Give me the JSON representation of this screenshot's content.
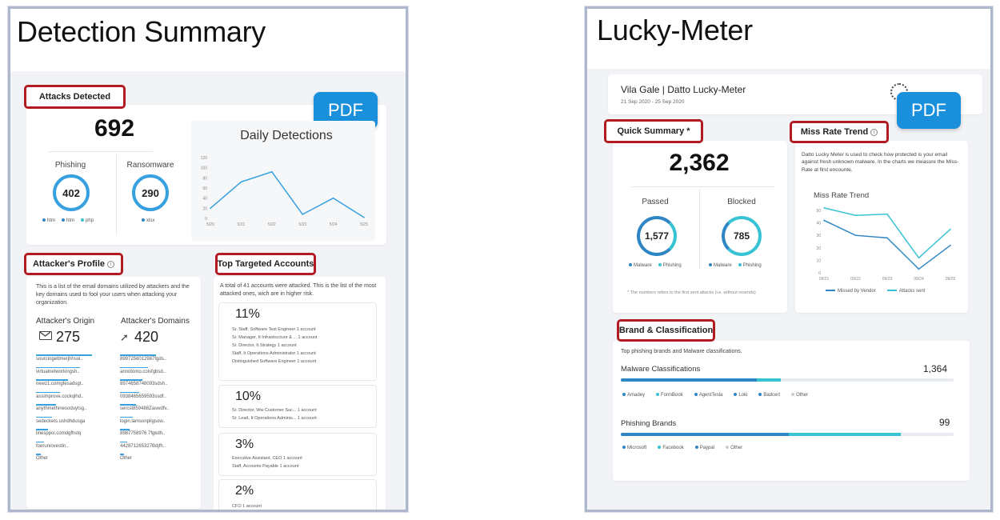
{
  "left": {
    "title": "Detection Summary",
    "attacks_label": "Attacks Detected",
    "pdf_label": "PDF",
    "total": "692",
    "phishing_label": "Phishing",
    "phishing_value": "402",
    "ransomware_label": "Ransomware",
    "ransomware_value": "290",
    "phishing_legend": [
      "htm",
      "htm",
      "php"
    ],
    "ransomware_legend": [
      "xlsx"
    ],
    "chart_title": "Daily Detections",
    "profile_label": "Attacker's Profile",
    "profile_desc": "This is a list of the email domains utilized by attackers and the key domains used to fool your users when attacking your organization.",
    "origin_label": "Attacker's Origin",
    "origin_value": "275",
    "domains_label": "Attacker's Domains",
    "domains_value": "420",
    "origin_list": [
      "sourcingettmerjhhsoi..",
      "virtualnetworkingsh..",
      "newz1.comgfesadsgt..",
      "assimprove.cockqlhd..",
      "anythmethinesoduytsg..",
      "sedeckets.ushdhdusga",
      "linesppoi.comdgfhstq",
      "foeruninvestin..",
      "Other"
    ],
    "domain_list": [
      "8997256012987fgds..",
      "annotomo.coisfgbsd..",
      "8974658748093sdsh..",
      "0938465659593ssdf..",
      "sercst859488Zaswdfv..",
      "login.lamsonpligsow..",
      "8987758976 7fgkdh..",
      "442871265327Bdjfh..",
      "Other"
    ],
    "targeted_label": "Top Targeted Accounts",
    "targeted_desc": "A total of 41 accounts were attacked. This is the list of the most attacked ones, wich are in higher risk.",
    "accounts": [
      {
        "pct": "11%",
        "lines": [
          "Sr. Staff, Software Test Engineer  1 account",
          "Sr. Manager, It Infrastructure & ...  1 account",
          "Sr. Director, It Strategy    1 account",
          "Staff, It Operations Administrator  1 account",
          "Distinguished Software Engineer  1 account"
        ]
      },
      {
        "pct": "10%",
        "lines": [
          "Sr. Director, Ww Customer Suc...  1 account",
          "Sr. Lead, It Operations Adminis...  1 account"
        ]
      },
      {
        "pct": "3%",
        "lines": [
          "Executive Assistant, CEO   1 account",
          "Staff, Accounts Payable   1 account"
        ]
      },
      {
        "pct": "2%",
        "lines": [
          "CFO                                   1 account"
        ]
      }
    ]
  },
  "right": {
    "title": "Lucky-Meter",
    "pdf_label": "PDF",
    "header_title": "Vila Gale | Datto Lucky-Meter",
    "header_dates": "21 Sep 2020 - 25 Sep 2020",
    "summary_label": "Quick Summary *",
    "total": "2,362",
    "passed_label": "Passed",
    "passed_value": "1,577",
    "blocked_label": "Blocked",
    "blocked_value": "785",
    "legend": [
      "Malware",
      "Phishing"
    ],
    "footnote": "* The numbers refers to the first sent attacks (i.e. without resends)",
    "miss_label": "Miss Rate Trend",
    "miss_desc": "Datto Lucky Meter is used to check how protected is your email against fresh unknown malware. In the charts we measure the Miss-Rate at first encounte.",
    "chart_title": "Miss Rate Trend",
    "chart_legend": [
      "Missed by Vendor",
      "Attacks sent"
    ],
    "brand_label": "Brand & Classification",
    "brand_desc": "Top phishing brands and Malware classifications.",
    "malware_label": "Malware Classifications",
    "malware_value": "1,364",
    "malware_legend": [
      "Amadey",
      "FormBook",
      "AgentTesla",
      "Loki",
      "Badcert",
      "Other"
    ],
    "phishing_label": "Phishing Brands",
    "phishing_value": "99",
    "phishing_legend": [
      "Microsoft",
      "Facebook",
      "Paypal",
      "Other"
    ]
  },
  "chart_data": [
    {
      "type": "line",
      "title": "Daily Detections",
      "x": [
        "5/20",
        "5/21",
        "5/22",
        "5/23",
        "5/24",
        "5/25"
      ],
      "series": [
        {
          "values": [
            20,
            72,
            92,
            8,
            40,
            2
          ]
        }
      ],
      "ylim": [
        0,
        120
      ],
      "yticks": [
        0,
        20,
        40,
        60,
        80,
        100,
        120
      ]
    },
    {
      "type": "line",
      "title": "Miss Rate Trend",
      "x": [
        "09/21",
        "09/22",
        "09/23",
        "09/24",
        "09/25"
      ],
      "series": [
        {
          "name": "Missed by Vendor",
          "color": "#2f86c4",
          "values": [
            42,
            30,
            28,
            3,
            22
          ]
        },
        {
          "name": "Attacks sent",
          "color": "#38c3d4",
          "values": [
            52,
            46,
            47,
            12,
            35
          ]
        }
      ],
      "ylim": [
        0,
        50
      ],
      "yticks": [
        0,
        10,
        20,
        30,
        40,
        50
      ]
    }
  ]
}
